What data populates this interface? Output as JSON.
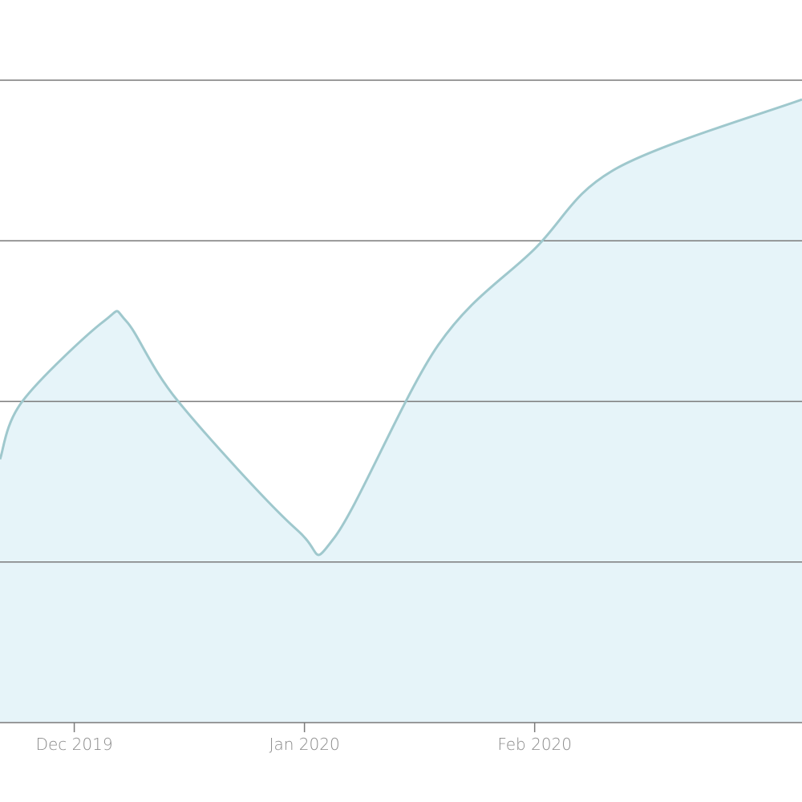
{
  "chart_data": {
    "type": "area",
    "title": "",
    "xlabel": "",
    "ylabel": "",
    "x_tick_labels": [
      {
        "date": "2019-12-01",
        "label": "Dec 2019"
      },
      {
        "date": "2020-01-01",
        "label": "Jan 2020"
      },
      {
        "date": "2020-02-01",
        "label": "Feb 2020"
      }
    ],
    "xlim": [
      "2019-11-21",
      "2020-03-08"
    ],
    "ylim": [
      0,
      4
    ],
    "y_gridlines": [
      1,
      2,
      3,
      4
    ],
    "y_tick_labels_visible": false,
    "grid": true,
    "series": [
      {
        "x": [
          "2019-11-21",
          "2019-11-24",
          "2019-12-05",
          "2019-12-08",
          "2019-12-15",
          "2019-12-31",
          "2020-01-05",
          "2020-01-19",
          "2020-02-01",
          "2020-02-12",
          "2020-03-08"
        ],
        "values": [
          1.64,
          2.0,
          2.5,
          2.5,
          2.0,
          1.2,
          1.15,
          2.35,
          2.95,
          3.45,
          3.88
        ]
      }
    ],
    "colors": {
      "line": "#9fc8cd",
      "fill": "#e6f4f9",
      "grid": "#7a7a7a",
      "tick_label": "#8a8a8a"
    }
  }
}
